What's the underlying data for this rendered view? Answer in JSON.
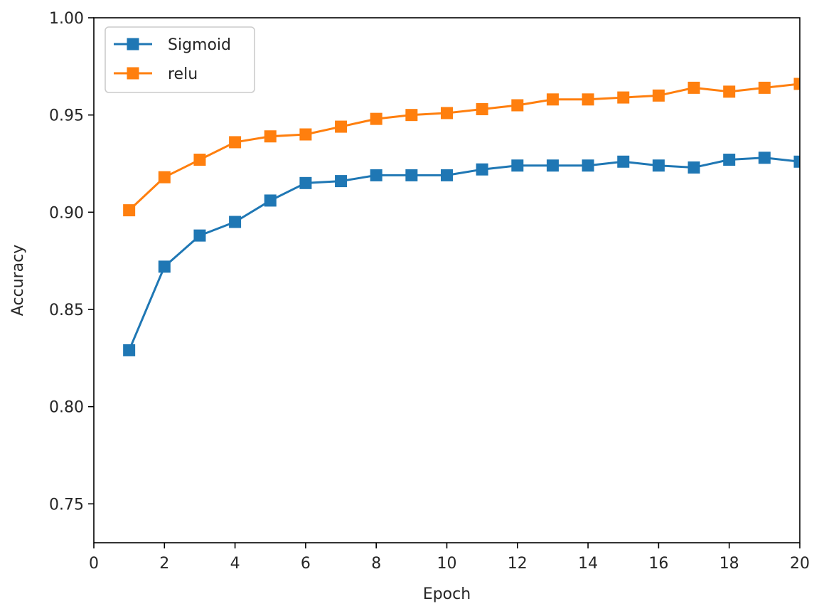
{
  "chart_data": {
    "type": "line",
    "title": "",
    "xlabel": "Epoch",
    "ylabel": "Accuracy",
    "xlim": [
      0,
      20
    ],
    "ylim": [
      0.73,
      1.0
    ],
    "xticks": [
      0,
      2,
      4,
      6,
      8,
      10,
      12,
      14,
      16,
      18,
      20
    ],
    "xtick_labels": [
      "0",
      "2",
      "4",
      "6",
      "8",
      "10",
      "12",
      "14",
      "16",
      "18",
      "20"
    ],
    "yticks": [
      0.75,
      0.8,
      0.85,
      0.9,
      0.95,
      1.0
    ],
    "ytick_labels": [
      "0.75",
      "0.80",
      "0.85",
      "0.90",
      "0.95",
      "1.00"
    ],
    "grid": false,
    "legend_position": "top-left",
    "x": [
      1,
      2,
      3,
      4,
      5,
      6,
      7,
      8,
      9,
      10,
      11,
      12,
      13,
      14,
      15,
      16,
      17,
      18,
      19,
      20
    ],
    "series": [
      {
        "name": "Sigmoid",
        "color": "#1f77b4",
        "marker": "square",
        "values": [
          0.829,
          0.872,
          0.888,
          0.895,
          0.906,
          0.915,
          0.916,
          0.919,
          0.919,
          0.919,
          0.922,
          0.924,
          0.924,
          0.924,
          0.926,
          0.924,
          0.923,
          0.927,
          0.928,
          0.926
        ]
      },
      {
        "name": "relu",
        "color": "#ff7f0e",
        "marker": "square",
        "values": [
          0.901,
          0.918,
          0.927,
          0.936,
          0.939,
          0.94,
          0.944,
          0.948,
          0.95,
          0.951,
          0.953,
          0.955,
          0.958,
          0.958,
          0.959,
          0.96,
          0.964,
          0.962,
          0.964,
          0.966
        ]
      }
    ]
  }
}
